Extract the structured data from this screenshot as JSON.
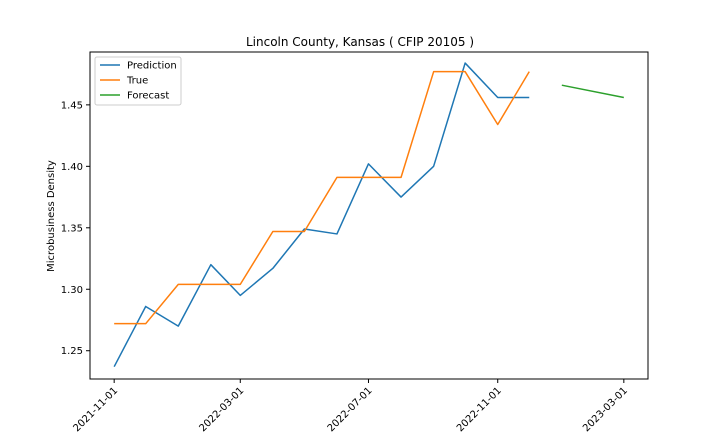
{
  "chart_data": {
    "type": "line",
    "title": "Lincoln County, Kansas ( CFIP 20105 )",
    "xlabel": "",
    "ylabel": "Microbusiness Density",
    "x_ticks": [
      "2021-11-01",
      "2022-03-01",
      "2022-07-01",
      "2022-11-01",
      "2023-03-01"
    ],
    "y_ticks": [
      "1.25",
      "1.30",
      "1.35",
      "1.40",
      "1.45"
    ],
    "xlim": [
      "2021-10-09",
      "2023-03-24"
    ],
    "ylim": [
      1.227,
      1.493
    ],
    "grid": false,
    "legend_position": "top-left",
    "series": [
      {
        "name": "Prediction",
        "color": "#1f77b4",
        "x": [
          "2021-11-01",
          "2021-12-01",
          "2022-01-01",
          "2022-02-01",
          "2022-03-01",
          "2022-04-01",
          "2022-05-01",
          "2022-06-01",
          "2022-07-01",
          "2022-08-01",
          "2022-09-01",
          "2022-10-01",
          "2022-11-01",
          "2022-12-01"
        ],
        "y": [
          1.237,
          1.286,
          1.27,
          1.32,
          1.295,
          1.317,
          1.349,
          1.345,
          1.402,
          1.375,
          1.4,
          1.484,
          1.456,
          1.456
        ]
      },
      {
        "name": "True",
        "color": "#ff7f0e",
        "x": [
          "2021-11-01",
          "2021-12-01",
          "2022-01-01",
          "2022-02-01",
          "2022-03-01",
          "2022-04-01",
          "2022-05-01",
          "2022-06-01",
          "2022-07-01",
          "2022-08-01",
          "2022-09-01",
          "2022-10-01",
          "2022-11-01",
          "2022-12-01"
        ],
        "y": [
          1.272,
          1.272,
          1.304,
          1.304,
          1.304,
          1.347,
          1.347,
          1.391,
          1.391,
          1.391,
          1.477,
          1.477,
          1.434,
          1.477
        ]
      },
      {
        "name": "Forecast",
        "color": "#2ca02c",
        "x": [
          "2023-01-01",
          "2023-03-01"
        ],
        "y": [
          1.466,
          1.456
        ]
      }
    ]
  }
}
